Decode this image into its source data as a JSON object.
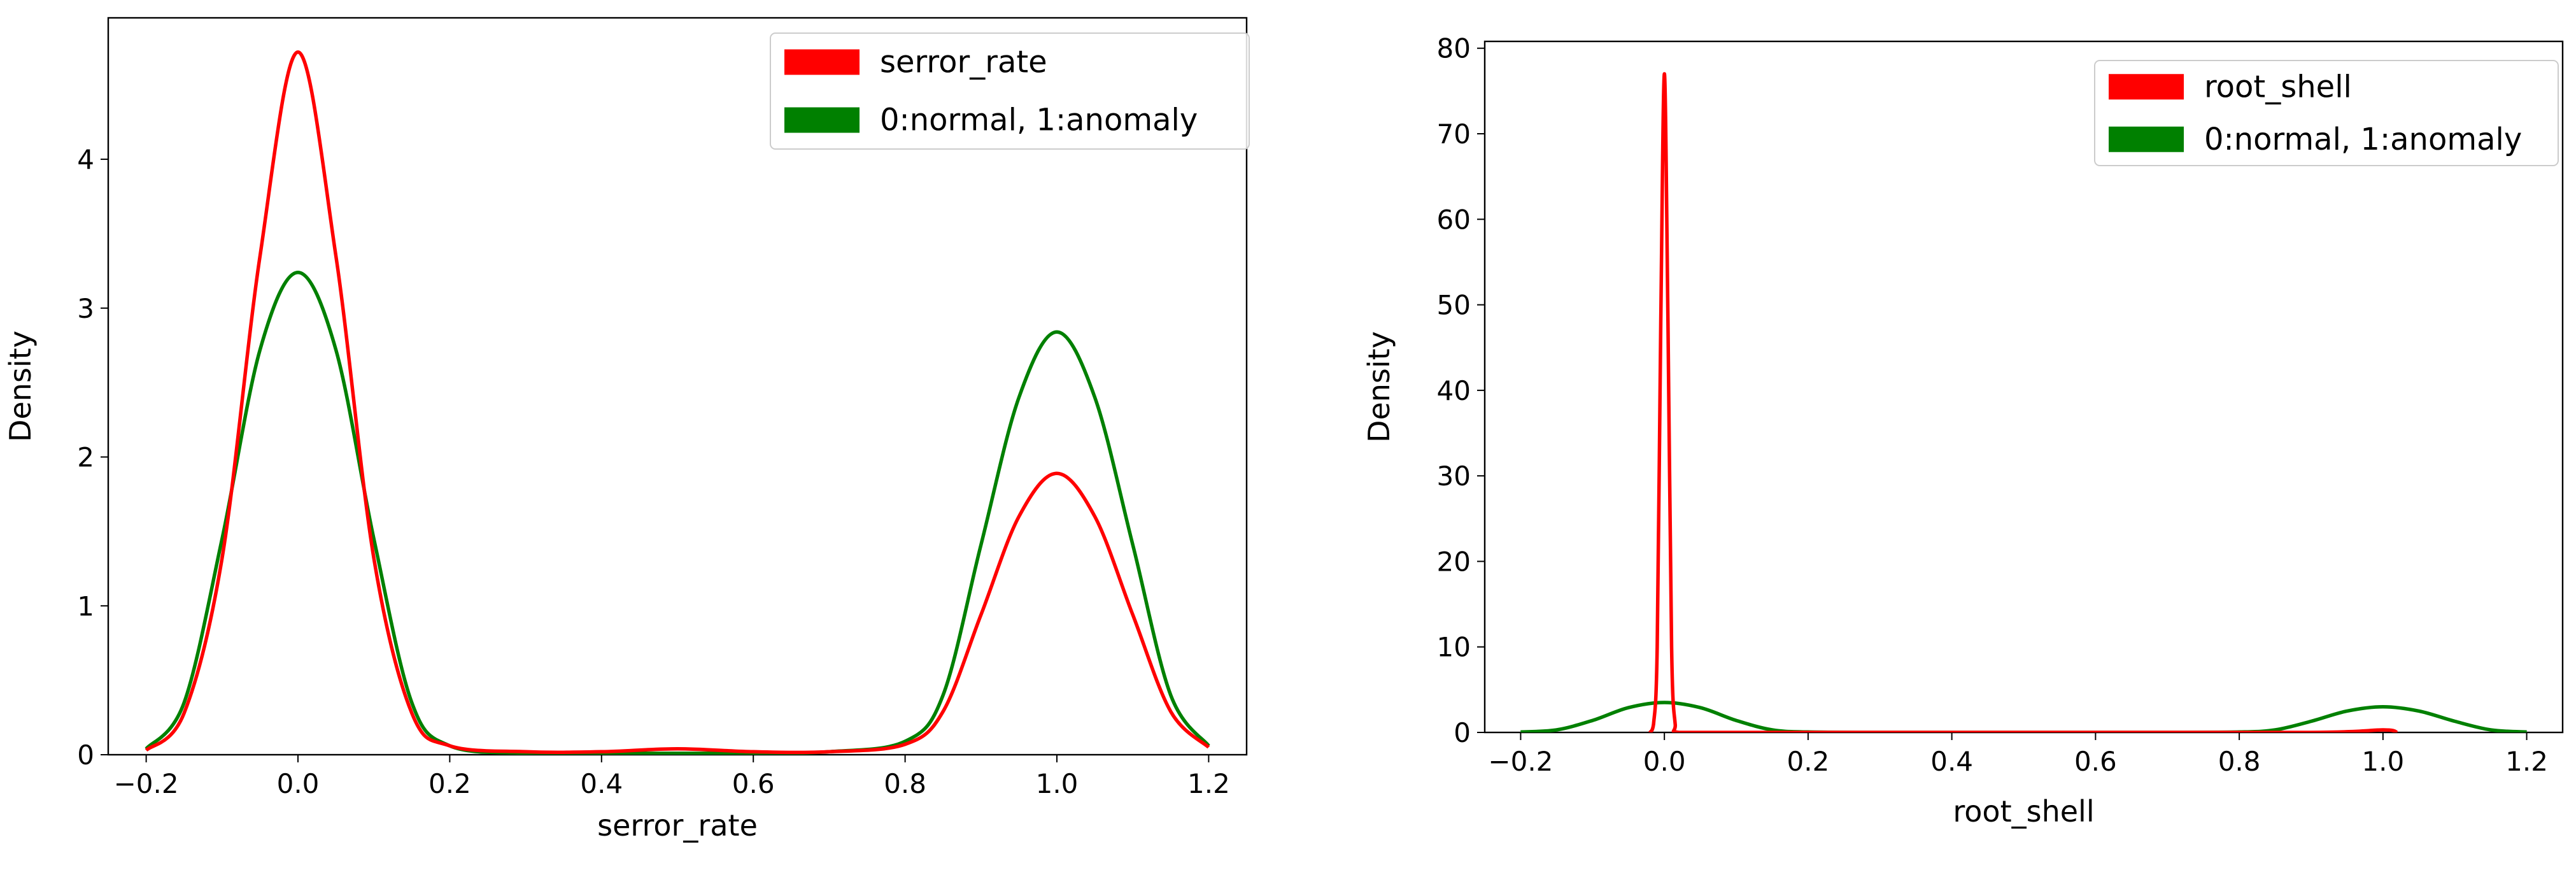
{
  "chart_data": [
    {
      "type": "line",
      "subtype": "kde",
      "xlabel": "serror_rate",
      "ylabel": "Density",
      "xlim": [
        -0.25,
        1.25
      ],
      "ylim": [
        0,
        4.95
      ],
      "xticks": [
        "−0.2",
        "0.0",
        "0.2",
        "0.4",
        "0.6",
        "0.8",
        "1.0",
        "1.2"
      ],
      "xtick_values": [
        -0.2,
        0.0,
        0.2,
        0.4,
        0.6,
        0.8,
        1.0,
        1.2
      ],
      "yticks": [
        "0",
        "1",
        "2",
        "3",
        "4"
      ],
      "ytick_values": [
        0,
        1,
        2,
        3,
        4
      ],
      "legend_position": "top-right",
      "series": [
        {
          "name": "serror_rate",
          "color": "#ff0000",
          "x": [
            -0.2,
            -0.15,
            -0.1,
            -0.05,
            0.0,
            0.05,
            0.1,
            0.15,
            0.2,
            0.3,
            0.4,
            0.5,
            0.6,
            0.7,
            0.8,
            0.85,
            0.9,
            0.95,
            1.0,
            1.05,
            1.1,
            1.15,
            1.2
          ],
          "values": [
            0.03,
            0.28,
            1.32,
            3.35,
            4.72,
            3.35,
            1.32,
            0.28,
            0.06,
            0.02,
            0.02,
            0.04,
            0.02,
            0.02,
            0.07,
            0.29,
            0.94,
            1.6,
            1.89,
            1.6,
            0.94,
            0.29,
            0.05
          ]
        },
        {
          "name": "0:normal, 1:anomaly",
          "color": "#008000",
          "x": [
            -0.2,
            -0.15,
            -0.1,
            -0.05,
            0.0,
            0.05,
            0.1,
            0.15,
            0.2,
            0.3,
            0.4,
            0.5,
            0.6,
            0.7,
            0.8,
            0.85,
            0.9,
            0.95,
            1.0,
            1.05,
            1.1,
            1.15,
            1.2
          ],
          "values": [
            0.04,
            0.35,
            1.45,
            2.72,
            3.24,
            2.72,
            1.45,
            0.35,
            0.06,
            0.01,
            0.01,
            0.01,
            0.01,
            0.02,
            0.09,
            0.4,
            1.41,
            2.4,
            2.84,
            2.4,
            1.41,
            0.4,
            0.06
          ]
        }
      ]
    },
    {
      "type": "line",
      "subtype": "kde",
      "xlabel": "root_shell",
      "ylabel": "Density",
      "xlim": [
        -0.25,
        1.25
      ],
      "ylim": [
        0,
        80.8
      ],
      "xticks": [
        "−0.2",
        "0.0",
        "0.2",
        "0.4",
        "0.6",
        "0.8",
        "1.0",
        "1.2"
      ],
      "xtick_values": [
        -0.2,
        0.0,
        0.2,
        0.4,
        0.6,
        0.8,
        1.0,
        1.2
      ],
      "yticks": [
        "0",
        "10",
        "20",
        "30",
        "40",
        "50",
        "60",
        "70",
        "80"
      ],
      "ytick_values": [
        0,
        10,
        20,
        30,
        40,
        50,
        60,
        70,
        80
      ],
      "legend_position": "top-right",
      "series": [
        {
          "name": "root_shell",
          "color": "#ff0000",
          "x": [
            -0.02,
            -0.015,
            -0.01,
            -0.005,
            0.0,
            0.005,
            0.01,
            0.015,
            0.02,
            0.1,
            0.5,
            0.9,
            1.0,
            1.02
          ],
          "values": [
            0.0,
            1.0,
            10.0,
            48.0,
            77.0,
            48.0,
            10.0,
            1.0,
            0.0,
            0.0,
            0.0,
            0.0,
            0.3,
            0.0
          ]
        },
        {
          "name": "0:normal, 1:anomaly",
          "color": "#008000",
          "x": [
            -0.2,
            -0.15,
            -0.1,
            -0.05,
            0.0,
            0.05,
            0.1,
            0.15,
            0.2,
            0.3,
            0.5,
            0.7,
            0.8,
            0.85,
            0.9,
            0.95,
            1.0,
            1.05,
            1.1,
            1.15,
            1.2
          ],
          "values": [
            0.05,
            0.3,
            1.4,
            2.9,
            3.5,
            2.9,
            1.4,
            0.3,
            0.05,
            0.0,
            0.0,
            0.0,
            0.05,
            0.3,
            1.3,
            2.5,
            3.0,
            2.5,
            1.3,
            0.3,
            0.05
          ]
        }
      ]
    }
  ]
}
